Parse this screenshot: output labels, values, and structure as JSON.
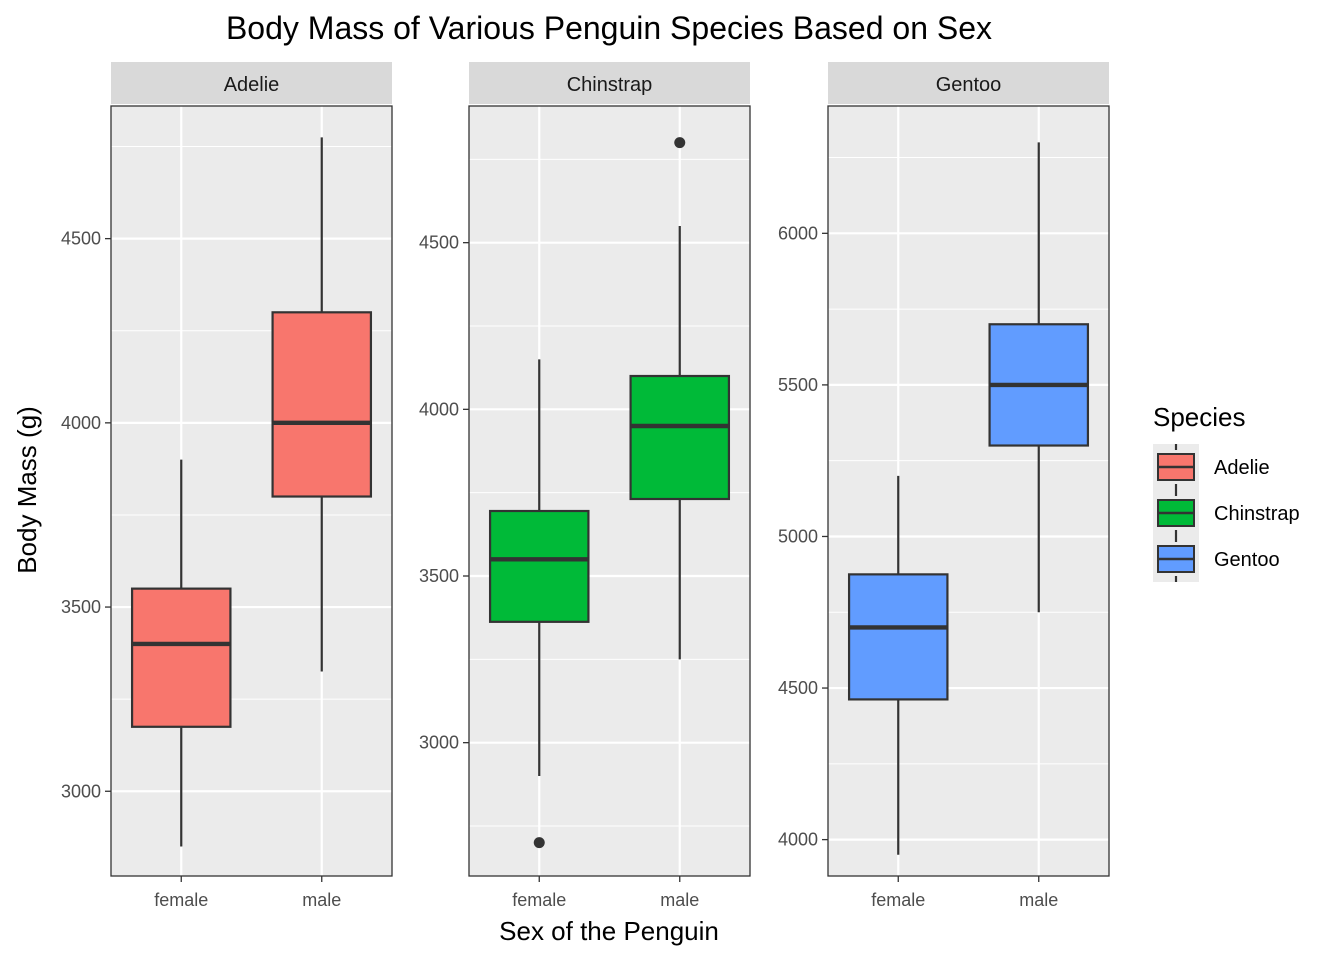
{
  "title": "Body Mass of Various Penguin Species Based on Sex",
  "chart_data": {
    "type": "boxplot",
    "title": "Body Mass of Various Penguin Species Based on Sex",
    "xlabel": "Sex of the Penguin",
    "ylabel": "Body Mass (g)",
    "categories": [
      "female",
      "male"
    ],
    "legend": {
      "title": "Species",
      "placement": "right",
      "entries": [
        {
          "label": "Adelie",
          "color": "#F8766D"
        },
        {
          "label": "Chinstrap",
          "color": "#00BA38"
        },
        {
          "label": "Gentoo",
          "color": "#619CFF"
        }
      ]
    },
    "colors": {
      "panel_bg": "#EBEBEB",
      "strip_bg": "#D9D9D9",
      "grid": "#FFFFFF",
      "box_line": "#333333"
    },
    "grid": true,
    "facets": [
      {
        "name": "Adelie",
        "color": "#F8766D",
        "ylim": [
          2770,
          4860
        ],
        "y_ticks": [
          3000,
          3500,
          4000,
          4500
        ],
        "boxes": [
          {
            "category": "female",
            "whisker_low": 2850,
            "q1": 3175,
            "median": 3400,
            "q3": 3550,
            "whisker_high": 3900,
            "outliers": []
          },
          {
            "category": "male",
            "whisker_low": 3325,
            "q1": 3800,
            "median": 4000,
            "q3": 4300,
            "whisker_high": 4775,
            "outliers": []
          }
        ]
      },
      {
        "name": "Chinstrap",
        "color": "#00BA38",
        "ylim": [
          2600,
          4910
        ],
        "y_ticks": [
          3000,
          3500,
          4000,
          4500
        ],
        "boxes": [
          {
            "category": "female",
            "whisker_low": 2900,
            "q1": 3362.5,
            "median": 3550,
            "q3": 3695,
            "whisker_high": 4150,
            "outliers": [
              2700
            ]
          },
          {
            "category": "male",
            "whisker_low": 3250,
            "q1": 3731,
            "median": 3950,
            "q3": 4100,
            "whisker_high": 4550,
            "outliers": [
              4800
            ]
          }
        ]
      },
      {
        "name": "Gentoo",
        "color": "#619CFF",
        "ylim": [
          3880,
          6420
        ],
        "y_ticks": [
          4000,
          4500,
          5000,
          5500,
          6000
        ],
        "boxes": [
          {
            "category": "female",
            "whisker_low": 3950,
            "q1": 4462.5,
            "median": 4700,
            "q3": 4875,
            "whisker_high": 5200,
            "outliers": []
          },
          {
            "category": "male",
            "whisker_low": 4750,
            "q1": 5300,
            "median": 5500,
            "q3": 5700,
            "whisker_high": 6300,
            "outliers": []
          }
        ]
      }
    ]
  }
}
